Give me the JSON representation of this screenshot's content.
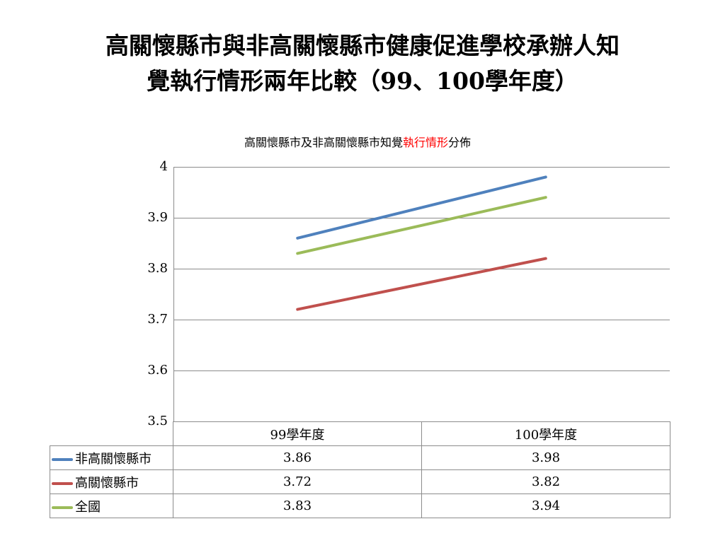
{
  "slide": {
    "title_line1": "高關懷縣市與非高關懷縣市健康促進學校承辦人知",
    "title_line2": "覺執行情形兩年比較（99、100學年度）"
  },
  "chart_data": {
    "type": "line",
    "title_prefix": "高關懷縣市及非高關懷縣市知覺",
    "title_highlight": "執行情形",
    "title_suffix": "分佈",
    "categories": [
      "99學年度",
      "100學年度"
    ],
    "ylim": [
      3.5,
      4
    ],
    "yticks": [
      "4",
      "3.9",
      "3.8",
      "3.7",
      "3.6",
      "3.5"
    ],
    "grid": true,
    "legend_placement": "data-table",
    "series": [
      {
        "name": "非高關懷縣市",
        "values": [
          3.86,
          3.98
        ],
        "display": [
          "3.86",
          "3.98"
        ],
        "color": "#4f81bd"
      },
      {
        "name": "高關懷縣市",
        "values": [
          3.72,
          3.82
        ],
        "display": [
          "3.72",
          "3.82"
        ],
        "color": "#c0504d"
      },
      {
        "name": "全國",
        "values": [
          3.83,
          3.94
        ],
        "display": [
          "3.83",
          "3.94"
        ],
        "color": "#9bbb59"
      }
    ]
  }
}
